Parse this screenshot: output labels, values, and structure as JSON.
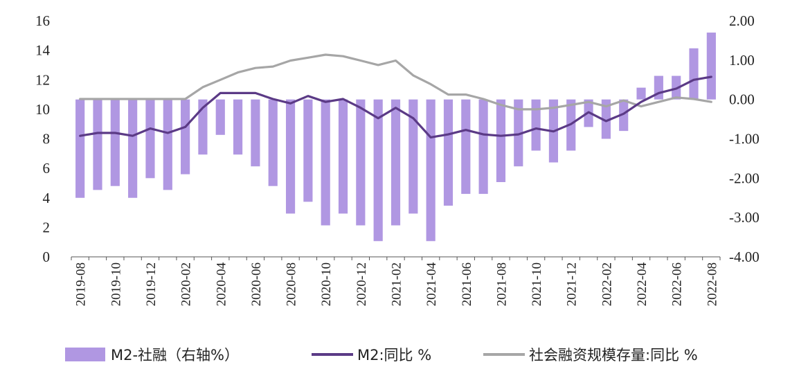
{
  "chart_data": {
    "type": "bar+line",
    "x": [
      "2019-08",
      "2019-09",
      "2019-10",
      "2019-11",
      "2019-12",
      "2020-01",
      "2020-02",
      "2020-03",
      "2020-04",
      "2020-05",
      "2020-06",
      "2020-07",
      "2020-08",
      "2020-09",
      "2020-10",
      "2020-11",
      "2020-12",
      "2021-01",
      "2021-02",
      "2021-03",
      "2021-04",
      "2021-05",
      "2021-06",
      "2021-07",
      "2021-08",
      "2021-09",
      "2021-10",
      "2021-11",
      "2021-12",
      "2022-01",
      "2022-02",
      "2022-03",
      "2022-04",
      "2022-05",
      "2022-06",
      "2022-07",
      "2022-08"
    ],
    "x_tick_labels": [
      "2019-08",
      "2019-10",
      "2019-12",
      "2020-02",
      "2020-04",
      "2020-06",
      "2020-08",
      "2020-10",
      "2020-12",
      "2021-02",
      "2021-04",
      "2021-06",
      "2021-08",
      "2021-10",
      "2021-12",
      "2022-02",
      "2022-04",
      "2022-06",
      "2022-08"
    ],
    "left_axis": {
      "ylim": [
        0,
        16
      ],
      "ticks": [
        "0",
        "2",
        "4",
        "6",
        "8",
        "10",
        "12",
        "14",
        "16"
      ]
    },
    "right_axis": {
      "ylim": [
        -4,
        2
      ],
      "ticks": [
        "-4.00",
        "-3.00",
        "-2.00",
        "-1.00",
        "0.00",
        "1.00",
        "2.00"
      ]
    },
    "series": [
      {
        "name": "M2-社融（右轴%）",
        "kind": "bar",
        "axis": "right",
        "color": "#b097e2",
        "values": [
          -2.5,
          -2.3,
          -2.2,
          -2.5,
          -2.0,
          -2.3,
          -1.9,
          -1.4,
          -0.9,
          -1.4,
          -1.7,
          -2.2,
          -2.9,
          -2.6,
          -3.2,
          -2.9,
          -3.2,
          -3.6,
          -3.2,
          -2.9,
          -3.6,
          -2.7,
          -2.4,
          -2.4,
          -2.1,
          -1.7,
          -1.3,
          -1.6,
          -1.3,
          -0.7,
          -1.0,
          -0.8,
          0.3,
          0.6,
          0.6,
          1.3,
          1.7
        ]
      },
      {
        "name": "M2:同比 %",
        "kind": "line",
        "axis": "left",
        "color": "#5b3a86",
        "values": [
          8.2,
          8.4,
          8.4,
          8.2,
          8.7,
          8.4,
          8.8,
          10.1,
          11.1,
          11.1,
          11.1,
          10.7,
          10.4,
          10.9,
          10.5,
          10.7,
          10.1,
          9.4,
          10.1,
          9.4,
          8.1,
          8.3,
          8.6,
          8.3,
          8.2,
          8.3,
          8.7,
          8.5,
          9.0,
          9.8,
          9.2,
          9.7,
          10.5,
          11.1,
          11.4,
          12.0,
          12.2
        ]
      },
      {
        "name": "社会融资规模存量:同比 %",
        "kind": "line",
        "axis": "left",
        "color": "#a6a6a6",
        "values": [
          10.7,
          10.7,
          10.7,
          10.7,
          10.7,
          10.7,
          10.7,
          11.5,
          12.0,
          12.5,
          12.8,
          12.9,
          13.3,
          13.5,
          13.7,
          13.6,
          13.3,
          13.0,
          13.3,
          12.3,
          11.7,
          11.0,
          11.0,
          10.7,
          10.3,
          10.0,
          10.0,
          10.1,
          10.3,
          10.5,
          10.2,
          10.6,
          10.2,
          10.5,
          10.8,
          10.7,
          10.5
        ]
      }
    ],
    "legend": {
      "placement": "bottom"
    }
  }
}
